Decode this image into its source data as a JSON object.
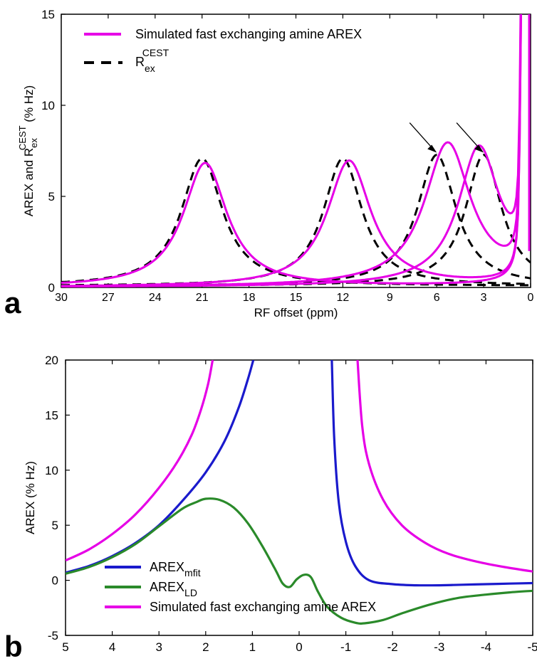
{
  "colors": {
    "magenta": "#e600e6",
    "blue": "#1a1acc",
    "green": "#2a8a2a",
    "black": "#000000"
  },
  "chart_data": [
    {
      "type": "line",
      "panel_label": "a",
      "xlabel": "RF offset (ppm)",
      "ylabel_parts": [
        "AREX and R",
        "ex",
        "CEST",
        " (% Hz)"
      ],
      "xlim": [
        30,
        0
      ],
      "ylim": [
        0,
        15
      ],
      "x_reversed": true,
      "xticks": [
        30,
        27,
        24,
        21,
        18,
        15,
        12,
        9,
        6,
        3,
        0
      ],
      "yticks": [
        0,
        5,
        10,
        15
      ],
      "legend_position": "top-left",
      "legend": [
        {
          "style": "solid",
          "color_key": "magenta",
          "label": "Simulated fast exchanging amine AREX"
        },
        {
          "style": "dashed",
          "color_key": "black",
          "label_parts": [
            "R",
            "ex",
            "CEST"
          ]
        }
      ],
      "dashed_peaks": [
        {
          "center": 21,
          "height": 7.0,
          "width": 3.2
        },
        {
          "center": 12,
          "height": 7.0,
          "width": 3.0
        },
        {
          "center": 6,
          "height": 7.2,
          "width": 3.0
        },
        {
          "center": 3,
          "height": 7.2,
          "width": 2.8
        }
      ],
      "solid_peaks": [
        {
          "center": 20.8,
          "height": 6.8,
          "width": 3.4
        },
        {
          "center": 11.6,
          "height": 6.9,
          "width": 3.4
        },
        {
          "center": 5.3,
          "height": 7.8,
          "width": 3.6
        },
        {
          "center": 3.3,
          "height": 7.5,
          "width": 3.2
        }
      ],
      "annotations": [
        {
          "type": "arrow",
          "target": {
            "x": 6,
            "y": 7.4
          }
        },
        {
          "type": "arrow",
          "target": {
            "x": 3,
            "y": 7.4
          }
        }
      ]
    },
    {
      "type": "line",
      "panel_label": "b",
      "xlabel": "",
      "ylabel": "AREX (% Hz)",
      "xlim": [
        5,
        -5
      ],
      "ylim": [
        -5,
        20
      ],
      "x_reversed": true,
      "xticks": [
        5,
        4,
        3,
        2,
        1,
        0,
        -1,
        -2,
        -3,
        -4,
        -5
      ],
      "yticks": [
        -5,
        0,
        5,
        10,
        15,
        20
      ],
      "legend_position": "bottom-left",
      "series": [
        {
          "name": "AREX_mfit",
          "label_parts": [
            "AREX",
            "mfit"
          ],
          "color_key": "blue",
          "segments": [
            [
              [
                5,
                0.7
              ],
              [
                4.5,
                1.3
              ],
              [
                4,
                2.2
              ],
              [
                3.5,
                3.4
              ],
              [
                3,
                5.0
              ],
              [
                2.5,
                7.2
              ],
              [
                2,
                9.8
              ],
              [
                1.6,
                12.6
              ],
              [
                1.3,
                15.6
              ],
              [
                1.1,
                18.2
              ],
              [
                0.98,
                20
              ]
            ],
            [
              [
                -0.7,
                20
              ],
              [
                -0.75,
                13
              ],
              [
                -0.85,
                7
              ],
              [
                -1.0,
                3.5
              ],
              [
                -1.2,
                1.3
              ],
              [
                -1.5,
                0
              ],
              [
                -2,
                -0.35
              ],
              [
                -2.5,
                -0.45
              ],
              [
                -3,
                -0.45
              ],
              [
                -3.5,
                -0.4
              ],
              [
                -4,
                -0.35
              ],
              [
                -4.5,
                -0.3
              ],
              [
                -5,
                -0.25
              ]
            ]
          ]
        },
        {
          "name": "AREX_LD",
          "label_parts": [
            "AREX",
            "LD"
          ],
          "color_key": "green",
          "segments": [
            [
              [
                5,
                0.6
              ],
              [
                4.5,
                1.2
              ],
              [
                4,
                2.1
              ],
              [
                3.5,
                3.3
              ],
              [
                3,
                4.9
              ],
              [
                2.5,
                6.5
              ],
              [
                2.2,
                7.1
              ],
              [
                2,
                7.4
              ],
              [
                1.7,
                7.3
              ],
              [
                1.4,
                6.6
              ],
              [
                1.1,
                5.2
              ],
              [
                0.8,
                3.2
              ],
              [
                0.5,
                0.9
              ],
              [
                0.35,
                -0.3
              ],
              [
                0.2,
                -0.6
              ],
              [
                0.05,
                0.1
              ],
              [
                -0.1,
                0.5
              ],
              [
                -0.25,
                0.3
              ],
              [
                -0.4,
                -1.0
              ],
              [
                -0.6,
                -2.4
              ],
              [
                -0.9,
                -3.4
              ],
              [
                -1.2,
                -3.85
              ],
              [
                -1.4,
                -3.9
              ],
              [
                -1.8,
                -3.6
              ],
              [
                -2.2,
                -3.0
              ],
              [
                -2.8,
                -2.2
              ],
              [
                -3.4,
                -1.6
              ],
              [
                -4,
                -1.3
              ],
              [
                -4.5,
                -1.1
              ],
              [
                -5,
                -0.95
              ]
            ]
          ]
        },
        {
          "name": "Simulated fast exchanging amine AREX",
          "label_parts": [
            "Simulated fast exchanging amine AREX",
            ""
          ],
          "color_key": "magenta",
          "segments": [
            [
              [
                5,
                1.8
              ],
              [
                4.5,
                2.8
              ],
              [
                4,
                4.2
              ],
              [
                3.5,
                6.0
              ],
              [
                3,
                8.4
              ],
              [
                2.6,
                10.8
              ],
              [
                2.3,
                13.2
              ],
              [
                2.1,
                15.5
              ],
              [
                1.95,
                17.8
              ],
              [
                1.85,
                20
              ]
            ],
            [
              [
                -1.25,
                20
              ],
              [
                -1.35,
                14
              ],
              [
                -1.5,
                10.5
              ],
              [
                -1.8,
                7.3
              ],
              [
                -2.2,
                5.0
              ],
              [
                -2.7,
                3.4
              ],
              [
                -3.2,
                2.4
              ],
              [
                -3.8,
                1.7
              ],
              [
                -4.4,
                1.2
              ],
              [
                -5,
                0.8
              ]
            ]
          ]
        }
      ]
    }
  ]
}
